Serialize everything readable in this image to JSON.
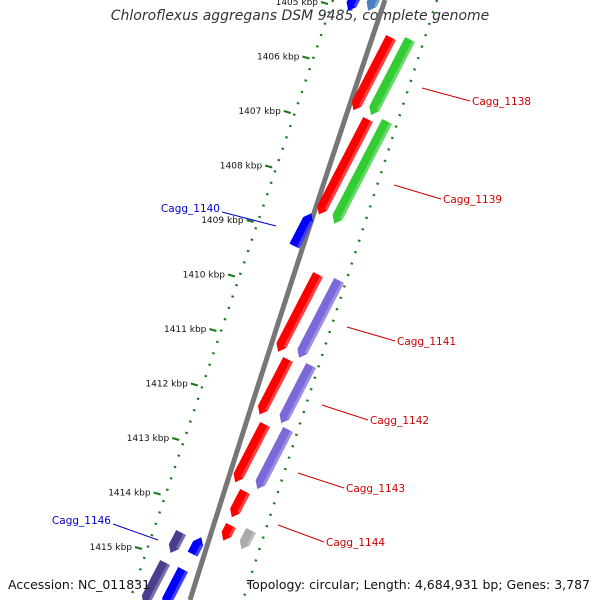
{
  "title": "Chloroflexus aggregans DSM 9485, complete genome",
  "footer": {
    "accession": "Accession: NC_011831",
    "topology": "Topology: circular; Length: 4,684,931 bp; Genes: 3,787"
  },
  "colors": {
    "backbone": "#777777",
    "forward_cds": "#ff0000",
    "forward_rna": "#33cc33",
    "reverse_cds": "#0000ff",
    "reverse_feature": "#7b68d9",
    "dark_feature": "#4a3f8f",
    "pale_feature": "#aaaaaa",
    "tick": "#1a7a1a",
    "label_forward": "#cc0000",
    "label_reverse": "#0000cc"
  },
  "ticks": [
    "1405 kbp",
    "1406 kbp",
    "1407 kbp",
    "1408 kbp",
    "1409 kbp",
    "1410 kbp",
    "1411 kbp",
    "1412 kbp",
    "1413 kbp",
    "1414 kbp",
    "1415 kbp"
  ],
  "gene_labels": [
    {
      "name": "Cagg_1138",
      "strand": "forward"
    },
    {
      "name": "Cagg_1139",
      "strand": "forward"
    },
    {
      "name": "Cagg_1140",
      "strand": "reverse"
    },
    {
      "name": "Cagg_1141",
      "strand": "forward"
    },
    {
      "name": "Cagg_1142",
      "strand": "forward"
    },
    {
      "name": "Cagg_1143",
      "strand": "forward"
    },
    {
      "name": "Cagg_1144",
      "strand": "forward"
    },
    {
      "name": "Cagg_1146",
      "strand": "reverse"
    }
  ]
}
